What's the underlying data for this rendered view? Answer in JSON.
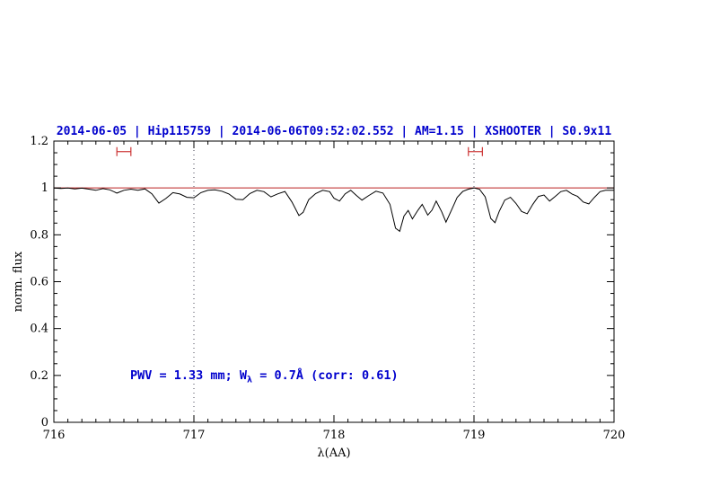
{
  "header": {
    "title": "2014-06-05 | Hip115759 | 2014-06-06T09:52:02.552 | AM=1.15 | XSHOOTER | S0.9x11"
  },
  "annotation": {
    "pre": "PWV = 1.33 mm; W",
    "sub": "λ",
    "post": " = 0.7Å (corr: 0.61)"
  },
  "colors": {
    "title": "#0000cd",
    "annotation": "#0000cd",
    "spectrum": "#000000",
    "continuum": "#bb2222",
    "range_marker": "#cc3333",
    "guide_line": "#444455",
    "axis": "#000000"
  },
  "chart_data": {
    "type": "line",
    "title": "2014-06-05 | Hip115759 | 2014-06-06T09:52:02.552 | AM=1.15 | XSHOOTER | S0.9x11",
    "xlabel": "λ(AA)",
    "ylabel": "norm. flux",
    "xlim": [
      716,
      720
    ],
    "ylim": [
      0,
      1.2
    ],
    "xticks": [
      716,
      717,
      718,
      719,
      720
    ],
    "xtick_labels": [
      "716",
      "717",
      "718",
      "719",
      "720"
    ],
    "x_minor_step": 0.1,
    "yticks": [
      0,
      0.2,
      0.4,
      0.6,
      0.8,
      1,
      1.2
    ],
    "ytick_labels": [
      "0",
      "0.2",
      "0.4",
      "0.6",
      "0.8",
      "1",
      "1.2"
    ],
    "y_minor_step": 0.05,
    "grid": false,
    "guide_lines": [
      717,
      719
    ],
    "continuum_level": 1.0,
    "range_markers": [
      {
        "center": 716.5,
        "half_width": 0.05,
        "y": 1.155
      },
      {
        "center": 719.01,
        "half_width": 0.05,
        "y": 1.155
      }
    ],
    "series": [
      {
        "name": "telluric-corrected spectrum",
        "x": [
          716.0,
          716.05,
          716.1,
          716.15,
          716.2,
          716.25,
          716.3,
          716.35,
          716.4,
          716.45,
          716.5,
          716.55,
          716.6,
          716.65,
          716.7,
          716.75,
          716.8,
          716.85,
          716.9,
          716.95,
          717.0,
          717.05,
          717.1,
          717.15,
          717.2,
          717.25,
          717.3,
          717.35,
          717.4,
          717.45,
          717.5,
          717.55,
          717.6,
          717.65,
          717.7,
          717.75,
          717.78,
          717.82,
          717.87,
          717.92,
          717.97,
          718.0,
          718.04,
          718.08,
          718.12,
          718.16,
          718.2,
          718.25,
          718.3,
          718.35,
          718.4,
          718.44,
          718.47,
          718.5,
          718.53,
          718.56,
          718.6,
          718.63,
          718.67,
          718.7,
          718.73,
          718.77,
          718.8,
          718.84,
          718.88,
          718.92,
          718.96,
          719.0,
          719.04,
          719.08,
          719.12,
          719.15,
          719.18,
          719.22,
          719.26,
          719.3,
          719.34,
          719.38,
          719.42,
          719.46,
          719.5,
          719.54,
          719.58,
          719.62,
          719.66,
          719.7,
          719.74,
          719.78,
          719.82,
          719.86,
          719.9,
          719.94,
          720.0
        ],
        "y": [
          1.0,
          0.998,
          1.0,
          0.996,
          0.999,
          0.995,
          0.99,
          0.997,
          0.992,
          0.978,
          0.99,
          0.995,
          0.99,
          0.996,
          0.975,
          0.935,
          0.955,
          0.98,
          0.974,
          0.96,
          0.958,
          0.98,
          0.99,
          0.992,
          0.986,
          0.974,
          0.952,
          0.95,
          0.976,
          0.99,
          0.984,
          0.962,
          0.975,
          0.985,
          0.94,
          0.882,
          0.896,
          0.95,
          0.976,
          0.99,
          0.984,
          0.956,
          0.944,
          0.975,
          0.99,
          0.968,
          0.948,
          0.968,
          0.986,
          0.978,
          0.93,
          0.828,
          0.815,
          0.88,
          0.904,
          0.868,
          0.905,
          0.93,
          0.884,
          0.905,
          0.944,
          0.898,
          0.854,
          0.906,
          0.96,
          0.985,
          0.995,
          1.0,
          0.994,
          0.962,
          0.87,
          0.852,
          0.9,
          0.948,
          0.96,
          0.934,
          0.9,
          0.89,
          0.93,
          0.964,
          0.97,
          0.944,
          0.964,
          0.984,
          0.99,
          0.974,
          0.964,
          0.94,
          0.932,
          0.96,
          0.984,
          0.99,
          0.99
        ]
      }
    ]
  }
}
